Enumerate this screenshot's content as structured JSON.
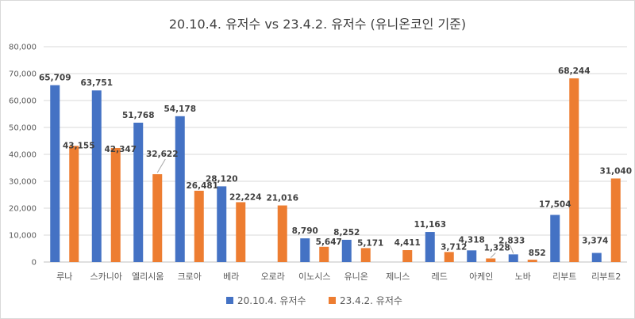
{
  "chart_data": {
    "type": "bar",
    "title": "20.10.4. 유저수 vs 23.4.2. 유저수 (유니온코인 기준)",
    "categories": [
      "루나",
      "스카니아",
      "엘리시움",
      "크로아",
      "베라",
      "오로라",
      "이노시스",
      "유니온",
      "제니스",
      "레드",
      "아케인",
      "노바",
      "리부트",
      "리부트2"
    ],
    "series": [
      {
        "name": "20.10.4. 유저수",
        "color": "#4472C4",
        "values": [
          65709,
          63751,
          51768,
          54178,
          28120,
          null,
          8790,
          8252,
          null,
          11163,
          4318,
          2833,
          17504,
          3374
        ]
      },
      {
        "name": "23.4.2. 유저수",
        "color": "#ED7D31",
        "values": [
          43155,
          42347,
          32622,
          26481,
          22224,
          21016,
          5647,
          5171,
          4411,
          3712,
          1328,
          852,
          68244,
          31040
        ]
      }
    ],
    "ylim": [
      0,
      80000
    ],
    "yticks": [
      "0",
      "10,000",
      "20,000",
      "30,000",
      "40,000",
      "50,000",
      "60,000",
      "70,000",
      "80,000"
    ],
    "grid": true,
    "legend": "bottom"
  }
}
